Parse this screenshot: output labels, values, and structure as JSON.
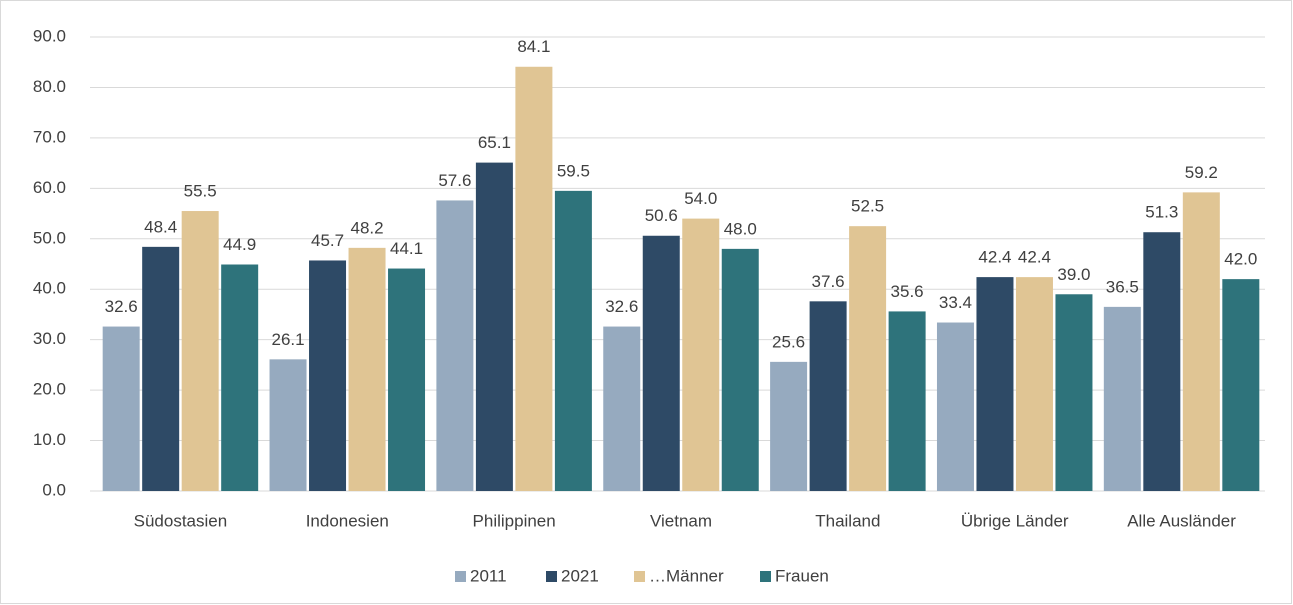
{
  "chart_data": {
    "type": "bar",
    "categories": [
      "Südostasien",
      "Indonesien",
      "Philippinen",
      "Vietnam",
      "Thailand",
      "Übrige Länder",
      "Alle Ausländer"
    ],
    "series": [
      {
        "name": "2011",
        "color": "#96aabf",
        "values": [
          32.6,
          26.1,
          57.6,
          32.6,
          25.6,
          33.4,
          36.5
        ],
        "value_labels": [
          "32.6",
          "26.1",
          "57.6",
          "32.6",
          "25.6",
          "33.4",
          "36.5"
        ]
      },
      {
        "name": "2021",
        "color": "#2e4a66",
        "values": [
          48.4,
          45.7,
          65.1,
          50.6,
          37.6,
          42.4,
          51.3
        ],
        "value_labels": [
          "48.4",
          "45.7",
          "65.1",
          "50.6",
          "37.6",
          "42.4",
          "51.3"
        ]
      },
      {
        "name": "…Männer",
        "color": "#e0c594",
        "values": [
          55.5,
          48.2,
          84.1,
          54,
          52.5,
          42.4,
          59.2
        ],
        "value_labels": [
          "55.5",
          "48.2",
          "84.1",
          "54.0",
          "52.5",
          "42.4",
          "59.2"
        ]
      },
      {
        "name": "Frauen",
        "color": "#2e737b",
        "values": [
          44.9,
          44.1,
          59.5,
          48,
          35.6,
          39,
          42
        ],
        "value_labels": [
          "44.9",
          "44.1",
          "59.5",
          "48.0",
          "35.6",
          "39.0",
          "42.0"
        ]
      }
    ],
    "ylim": [
      0,
      90
    ],
    "yticks": [
      {
        "value": 0,
        "label": "0.0"
      },
      {
        "value": 10,
        "label": "10.0"
      },
      {
        "value": 20,
        "label": "20.0"
      },
      {
        "value": 30,
        "label": "30.0"
      },
      {
        "value": 40,
        "label": "40.0"
      },
      {
        "value": 50,
        "label": "50.0"
      },
      {
        "value": 60,
        "label": "60.0"
      },
      {
        "value": 70,
        "label": "70.0"
      },
      {
        "value": 80,
        "label": "80.0"
      },
      {
        "value": 90,
        "label": "90.0"
      }
    ],
    "grid": true,
    "legend": "bottom"
  }
}
